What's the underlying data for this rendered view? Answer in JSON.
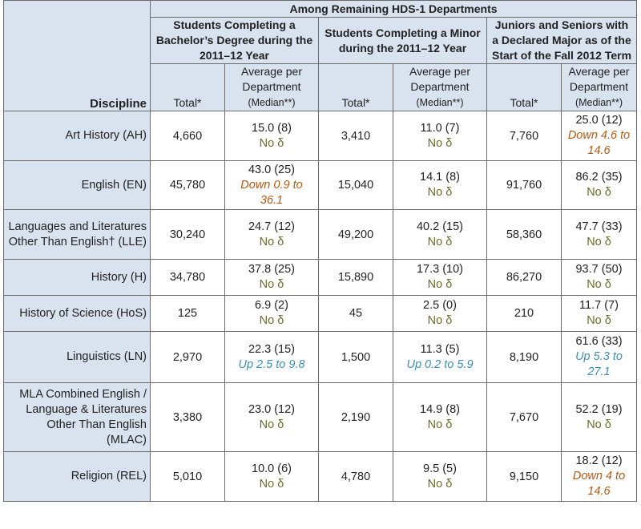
{
  "header": {
    "banner": "Among Remaining HDS-1 Departments",
    "discipline_label": "Discipline",
    "groups": [
      "Students Completing a Bachelor’s Degree during the 2011–12 Year",
      "Students Completing a Minor during the 2011–12 Year",
      "Juniors and Seniors with a Declared Major as of the Start of the Fall 2012 Term"
    ],
    "total_label": "Total*",
    "avg_label": "Average per Department",
    "median_label": "(Median**)"
  },
  "rows": [
    {
      "discipline": "Art History (AH)",
      "cells": [
        {
          "total": "4,660",
          "avg": "15.0 (8)",
          "change": "No δ",
          "dir": "none"
        },
        {
          "total": "3,410",
          "avg": "11.0 (7)",
          "change": "No δ",
          "dir": "none"
        },
        {
          "total": "7,760",
          "avg": "25.0 (12)",
          "change": "Down 4.6 to 14.6",
          "dir": "down"
        }
      ]
    },
    {
      "discipline": "English (EN)",
      "cells": [
        {
          "total": "45,780",
          "avg": "43.0 (25)",
          "change": "Down 0.9 to 36.1",
          "dir": "down"
        },
        {
          "total": "15,040",
          "avg": "14.1 (8)",
          "change": "No δ",
          "dir": "none"
        },
        {
          "total": "91,760",
          "avg": "86.2 (35)",
          "change": "No δ",
          "dir": "none"
        }
      ]
    },
    {
      "discipline": "Languages and Literatures Other Than English† (LLE)",
      "cells": [
        {
          "total": "30,240",
          "avg": "24.7 (12)",
          "change": "No δ",
          "dir": "none"
        },
        {
          "total": "49,200",
          "avg": "40.2 (15)",
          "change": "No δ",
          "dir": "none"
        },
        {
          "total": "58,360",
          "avg": "47.7 (33)",
          "change": "No δ",
          "dir": "none"
        }
      ]
    },
    {
      "discipline": "History (H)",
      "cells": [
        {
          "total": "34,780",
          "avg": "37.8 (25)",
          "change": "No δ",
          "dir": "none"
        },
        {
          "total": "15,890",
          "avg": "17.3 (10)",
          "change": "No δ",
          "dir": "none"
        },
        {
          "total": "86,270",
          "avg": "93.7 (50)",
          "change": "No δ",
          "dir": "none"
        }
      ]
    },
    {
      "discipline": "History of Science (HoS)",
      "cells": [
        {
          "total": "125",
          "avg": "6.9 (2)",
          "change": "No δ",
          "dir": "none"
        },
        {
          "total": "45",
          "avg": "2.5 (0)",
          "change": "No δ",
          "dir": "none"
        },
        {
          "total": "210",
          "avg": "11.7 (7)",
          "change": "No δ",
          "dir": "none"
        }
      ]
    },
    {
      "discipline": "Linguistics (LN)",
      "cells": [
        {
          "total": "2,970",
          "avg": "22.3 (15)",
          "change": "Up 2.5 to 9.8",
          "dir": "up"
        },
        {
          "total": "1,500",
          "avg": "11.3 (5)",
          "change": "Up 0.2 to 5.9",
          "dir": "up"
        },
        {
          "total": "8,190",
          "avg": "61.6 (33)",
          "change": "Up 5.3 to 27.1",
          "dir": "up"
        }
      ]
    },
    {
      "discipline": "MLA Combined English / Language & Literatures Other Than English (MLAC)",
      "cells": [
        {
          "total": "3,380",
          "avg": "23.0 (12)",
          "change": "No δ",
          "dir": "none"
        },
        {
          "total": "2,190",
          "avg": "14.9 (8)",
          "change": "No δ",
          "dir": "none"
        },
        {
          "total": "7,670",
          "avg": "52.2 (19)",
          "change": "No δ",
          "dir": "none"
        }
      ]
    },
    {
      "discipline": "Religion (REL)",
      "cells": [
        {
          "total": "5,010",
          "avg": "10.0 (6)",
          "change": "No δ",
          "dir": "none"
        },
        {
          "total": "4,780",
          "avg": "9.5 (5)",
          "change": "No δ",
          "dir": "none"
        },
        {
          "total": "9,150",
          "avg": "18.2 (12)",
          "change": "Down 4 to 14.6",
          "dir": "down"
        }
      ]
    }
  ],
  "colors": {
    "header_bg": "#d9e2ef",
    "no_change": "#6b6b2a",
    "down": "#b8570f",
    "up": "#3a8fb7"
  }
}
